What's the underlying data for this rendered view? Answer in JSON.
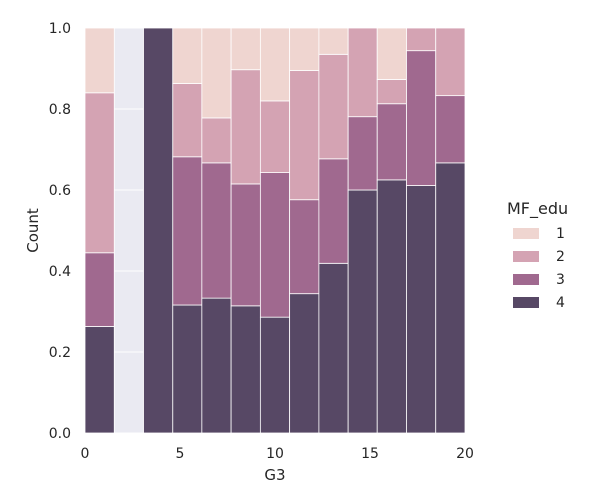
{
  "chart_data": {
    "type": "bar",
    "stacked": "fill",
    "xlabel": "G3",
    "ylabel": "Count",
    "xlim": [
      0,
      20
    ],
    "ylim": [
      0,
      1
    ],
    "xticks": [
      "0",
      "5",
      "10",
      "15",
      "20"
    ],
    "yticks": [
      "0.0",
      "0.2",
      "0.4",
      "0.6",
      "0.8",
      "1.0"
    ],
    "grid": true,
    "legend": {
      "title": "MF_edu",
      "placement": "right",
      "entries": [
        "1",
        "2",
        "3",
        "4"
      ]
    },
    "colors": {
      "background": "#eaeaf2",
      "grid": "#ffffff",
      "1": "#efd5d0",
      "2": "#d4a3b3",
      "3": "#a0698f",
      "4": "#574865"
    },
    "bins": [
      {
        "x0": 0.0,
        "x1": 1.54,
        "cum": [
          0.263,
          0.445,
          0.84,
          1.0
        ]
      },
      {
        "x0": 1.54,
        "x1": 3.08,
        "cum": null
      },
      {
        "x0": 3.08,
        "x1": 4.62,
        "cum": [
          1.0,
          1.0,
          1.0,
          1.0
        ]
      },
      {
        "x0": 4.62,
        "x1": 6.15,
        "cum": [
          0.316,
          0.682,
          0.863,
          1.0
        ]
      },
      {
        "x0": 6.15,
        "x1": 7.69,
        "cum": [
          0.333,
          0.667,
          0.778,
          1.0
        ]
      },
      {
        "x0": 7.69,
        "x1": 9.23,
        "cum": [
          0.314,
          0.615,
          0.897,
          1.0
        ]
      },
      {
        "x0": 9.23,
        "x1": 10.77,
        "cum": [
          0.286,
          0.643,
          0.82,
          1.0
        ]
      },
      {
        "x0": 10.77,
        "x1": 12.31,
        "cum": [
          0.344,
          0.576,
          0.895,
          1.0
        ]
      },
      {
        "x0": 12.31,
        "x1": 13.85,
        "cum": [
          0.419,
          0.677,
          0.935,
          1.0
        ]
      },
      {
        "x0": 13.85,
        "x1": 15.38,
        "cum": [
          0.6,
          0.781,
          1.0,
          1.0
        ]
      },
      {
        "x0": 15.38,
        "x1": 16.92,
        "cum": [
          0.625,
          0.813,
          0.873,
          1.0
        ]
      },
      {
        "x0": 16.92,
        "x1": 18.46,
        "cum": [
          0.611,
          0.944,
          1.0,
          1.0
        ]
      },
      {
        "x0": 18.46,
        "x1": 20.0,
        "cum": [
          0.667,
          0.833,
          1.0,
          1.0
        ]
      }
    ]
  }
}
